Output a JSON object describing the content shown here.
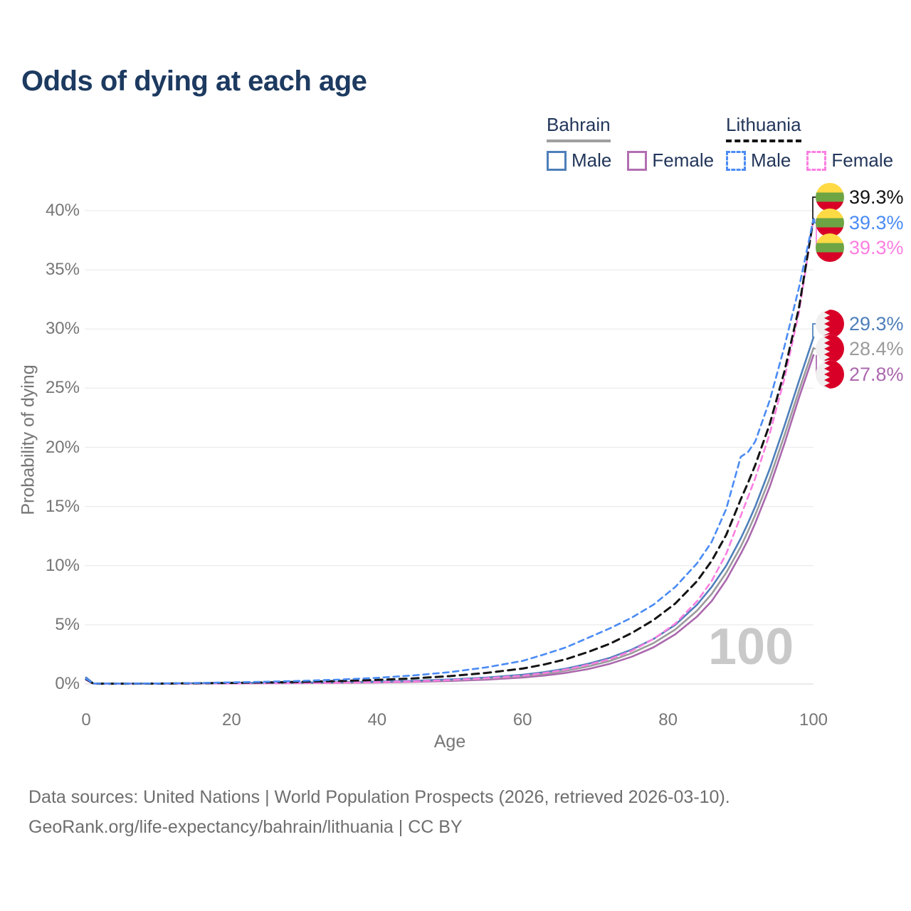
{
  "legend": {
    "groups": [
      {
        "title": "Bahrain",
        "underline_style": "solid",
        "underline_color": "#a0a0a0",
        "items": [
          {
            "label": "Male",
            "color": "#4e7fba",
            "style": "solid"
          },
          {
            "label": "Female",
            "color": "#b26fb2",
            "style": "solid"
          }
        ]
      },
      {
        "title": "Lithuania",
        "underline_style": "dashed",
        "underline_color": "#141414",
        "items": [
          {
            "label": "Male",
            "color": "#4b8bf4",
            "style": "dashed"
          },
          {
            "label": "Female",
            "color": "#fb7fe1",
            "style": "dashed"
          }
        ]
      }
    ]
  },
  "chart_data": {
    "type": "line",
    "title": "Odds of dying at each age",
    "xlabel": "Age",
    "ylabel": "Probability of dying",
    "xlim": [
      0,
      100
    ],
    "ylim": [
      0,
      40
    ],
    "x_ticks": [
      "0",
      "20",
      "40",
      "60",
      "80",
      "100"
    ],
    "y_ticks": [
      "0%",
      "5%",
      "10%",
      "15%",
      "20%",
      "25%",
      "30%",
      "35%",
      "40%"
    ],
    "grid": "horizontal-only",
    "hover_age_label": "100",
    "ages": [
      0,
      1,
      5,
      10,
      15,
      20,
      25,
      30,
      35,
      40,
      45,
      50,
      55,
      60,
      63,
      66,
      69,
      72,
      75,
      78,
      81,
      84,
      86,
      88,
      90,
      91,
      92,
      94,
      96,
      98,
      100
    ],
    "series": [
      {
        "name": "Bahrain Female",
        "country": "Bahrain",
        "sex": "female",
        "style": "solid",
        "color": "#aa68ad",
        "values": [
          0.45,
          0.03,
          0.02,
          0.03,
          0.04,
          0.05,
          0.06,
          0.075,
          0.095,
          0.125,
          0.175,
          0.25,
          0.36,
          0.54,
          0.71,
          0.94,
          1.26,
          1.7,
          2.3,
          3.1,
          4.2,
          5.7,
          7.0,
          8.8,
          11.0,
          12.2,
          13.6,
          16.7,
          20.3,
          24.2,
          27.8
        ]
      },
      {
        "name": "Bahrain",
        "country": "Bahrain",
        "sex": "both",
        "style": "solid",
        "color": "#9b9b9b",
        "values": [
          0.5,
          0.035,
          0.025,
          0.035,
          0.05,
          0.065,
          0.08,
          0.1,
          0.125,
          0.165,
          0.225,
          0.32,
          0.45,
          0.66,
          0.85,
          1.12,
          1.48,
          1.95,
          2.6,
          3.45,
          4.6,
          6.2,
          7.6,
          9.4,
          11.6,
          12.9,
          14.3,
          17.4,
          21.0,
          24.8,
          28.4
        ]
      },
      {
        "name": "Bahrain Male",
        "country": "Bahrain",
        "sex": "male",
        "style": "solid",
        "color": "#4e7fba",
        "values": [
          0.55,
          0.04,
          0.03,
          0.04,
          0.06,
          0.08,
          0.1,
          0.12,
          0.15,
          0.2,
          0.27,
          0.38,
          0.54,
          0.78,
          1.0,
          1.3,
          1.7,
          2.2,
          2.9,
          3.8,
          5.0,
          6.7,
          8.2,
          10.0,
          12.3,
          13.6,
          15.0,
          18.2,
          21.8,
          25.6,
          29.3
        ]
      },
      {
        "name": "Lithuania Female",
        "country": "Lithuania",
        "sex": "female",
        "style": "dashed",
        "color": "#fb7fe1",
        "values": [
          0.35,
          0.02,
          0.02,
          0.025,
          0.035,
          0.045,
          0.06,
          0.08,
          0.11,
          0.15,
          0.22,
          0.33,
          0.48,
          0.7,
          0.92,
          1.22,
          1.62,
          2.1,
          2.8,
          3.8,
          5.1,
          7.0,
          8.7,
          11.0,
          14.2,
          15.8,
          17.4,
          21.2,
          25.8,
          31.4,
          39.3
        ]
      },
      {
        "name": "Lithuania",
        "country": "Lithuania",
        "sex": "both",
        "style": "dashed",
        "color": "#141414",
        "values": [
          0.4,
          0.025,
          0.025,
          0.03,
          0.06,
          0.09,
          0.13,
          0.18,
          0.25,
          0.34,
          0.47,
          0.66,
          0.93,
          1.3,
          1.65,
          2.1,
          2.7,
          3.4,
          4.3,
          5.4,
          6.8,
          8.7,
          10.4,
          12.6,
          15.6,
          17.0,
          18.5,
          22.0,
          26.4,
          31.8,
          39.3
        ]
      },
      {
        "name": "Lithuania Male",
        "country": "Lithuania",
        "sex": "male",
        "style": "dashed",
        "color": "#4b8bf4",
        "values": [
          0.45,
          0.03,
          0.03,
          0.04,
          0.08,
          0.13,
          0.19,
          0.27,
          0.37,
          0.52,
          0.72,
          1.0,
          1.4,
          1.95,
          2.5,
          3.1,
          3.9,
          4.7,
          5.6,
          6.7,
          8.2,
          10.2,
          12.0,
          14.8,
          19.2,
          19.6,
          20.5,
          24.0,
          28.5,
          33.5,
          39.3
        ]
      }
    ],
    "end_labels": [
      {
        "series": "Lithuania",
        "label": "39.3%",
        "value": 39.3,
        "flag": "lithuania",
        "color": "#141414"
      },
      {
        "series": "Lithuania Male",
        "label": "39.3%",
        "value": 39.3,
        "flag": "lithuania",
        "color": "#4b8bf4"
      },
      {
        "series": "Lithuania Female",
        "label": "39.3%",
        "value": 39.3,
        "flag": "lithuania",
        "color": "#fb7fe1"
      },
      {
        "series": "Bahrain Male",
        "label": "29.3%",
        "value": 29.3,
        "flag": "bahrain",
        "color": "#4e7fba"
      },
      {
        "series": "Bahrain",
        "label": "28.4%",
        "value": 28.4,
        "flag": "bahrain",
        "color": "#9b9b9b"
      },
      {
        "series": "Bahrain Female",
        "label": "27.8%",
        "value": 27.8,
        "flag": "bahrain",
        "color": "#aa68ad"
      }
    ]
  },
  "footer": {
    "line1": "Data sources: United Nations | World Population Prospects (2026, retrieved 2026-03-10).",
    "line2": "GeoRank.org/life-expectancy/bahrain/lithuania | CC BY"
  }
}
